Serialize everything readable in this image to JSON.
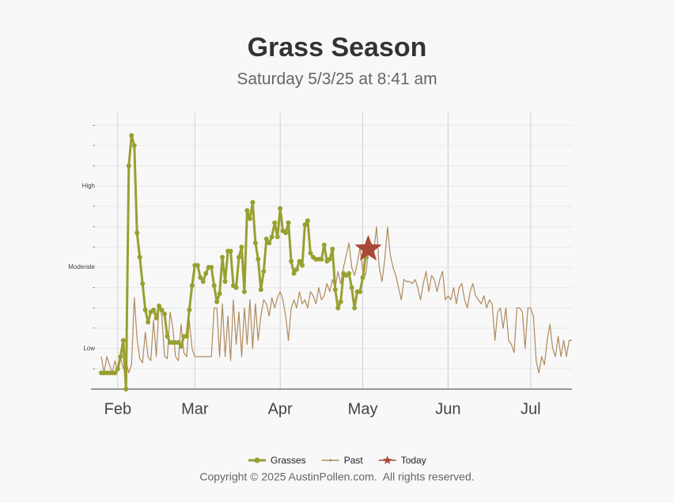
{
  "chart_data": {
    "type": "line",
    "title": "Grass Season",
    "subtitle": "Saturday 5/3/25 at 8:41 am",
    "categories": [
      null,
      null,
      null,
      null,
      null,
      null,
      "Feb",
      null,
      null,
      null,
      null,
      null,
      null,
      null,
      null,
      null,
      null,
      null,
      null,
      null,
      null,
      null,
      null,
      null,
      null,
      null,
      null,
      null,
      null,
      null,
      null,
      null,
      null,
      null,
      "Mar",
      null,
      null,
      null,
      null,
      null,
      null,
      null,
      null,
      null,
      null,
      null,
      null,
      null,
      null,
      null,
      null,
      null,
      null,
      null,
      null,
      null,
      null,
      null,
      null,
      null,
      null,
      null,
      null,
      null,
      null,
      "Apr",
      null,
      null,
      null,
      null,
      null,
      null,
      null,
      null,
      null,
      null,
      null,
      null,
      null,
      null,
      null,
      null,
      null,
      null,
      null,
      null,
      null,
      null,
      null,
      null,
      null,
      null,
      null,
      null,
      null,
      "May",
      null,
      null,
      null,
      null,
      null,
      null,
      null,
      null,
      null,
      null,
      null,
      null,
      null,
      null,
      null,
      null,
      null,
      null,
      null,
      null,
      null,
      null,
      null,
      null,
      null,
      null,
      null,
      null,
      null,
      null,
      "Jun",
      null,
      null,
      null,
      null,
      null,
      null,
      null,
      null,
      null,
      null,
      null,
      null,
      null,
      null,
      null,
      null,
      null,
      null,
      null,
      null,
      null,
      null,
      null,
      null,
      null,
      null,
      null,
      null,
      null,
      "Jul",
      null,
      null,
      null,
      null,
      null,
      null,
      null,
      null,
      null,
      null,
      null,
      null,
      null,
      null,
      null
    ],
    "series": [
      {
        "name": "Grasses",
        "color": "#98a030",
        "marker": "circle",
        "width": 3,
        "values": [
          0.8,
          0.8,
          0.8,
          0.8,
          0.8,
          0.8,
          1.0,
          1.6,
          2.4,
          0.0,
          11.0,
          12.5,
          12.0,
          7.7,
          6.5,
          5.2,
          3.9,
          3.3,
          3.8,
          3.9,
          3.5,
          4.1,
          3.9,
          3.7,
          2.6,
          2.3,
          2.3,
          2.3,
          2.3,
          2.1,
          2.6,
          2.6,
          3.9,
          5.1,
          6.1,
          6.1,
          5.5,
          5.3,
          5.7,
          6.0,
          6.0,
          5.1,
          4.3,
          4.7,
          6.5,
          5.3,
          6.8,
          6.8,
          5.1,
          5.0,
          6.5,
          7.0,
          4.8,
          8.8,
          8.4,
          9.2,
          7.2,
          6.4,
          4.9,
          5.8,
          7.4,
          7.2,
          7.5,
          8.2,
          7.5,
          8.9,
          7.8,
          7.7,
          8.2,
          6.3,
          5.7,
          5.9,
          6.3,
          6.1,
          8.1,
          8.3,
          6.7,
          6.5,
          6.4,
          6.4,
          6.4,
          7.1,
          6.3,
          6.4,
          6.9,
          4.9,
          4.0,
          4.3,
          5.7,
          5.6,
          5.7,
          5.0,
          4.0,
          4.8,
          4.8,
          5.5,
          6.5,
          6.9,
          null,
          null,
          null,
          null,
          null,
          null,
          null,
          null,
          null,
          null,
          null,
          null,
          null,
          null,
          null,
          null,
          null,
          null,
          null,
          null,
          null,
          null,
          null,
          null,
          null,
          null,
          null,
          null,
          null,
          null,
          null,
          null,
          null,
          null,
          null,
          null,
          null,
          null,
          null,
          null,
          null,
          null,
          null,
          null,
          null,
          null,
          null,
          null,
          null,
          null,
          null,
          null,
          null,
          null,
          null,
          null,
          null,
          null,
          null,
          null,
          null,
          null,
          null,
          null,
          null,
          null,
          null,
          null,
          null,
          null,
          null,
          null,
          null,
          null
        ]
      },
      {
        "name": "Past",
        "color": "#b08a5c",
        "marker": "none",
        "width": 1.2,
        "values": [
          1.6,
          0.8,
          1.6,
          1.2,
          0.8,
          1.4,
          0.9,
          1.6,
          1.0,
          1.4,
          0.8,
          1.2,
          4.5,
          2.5,
          1.5,
          1.3,
          2.8,
          1.6,
          1.4,
          3.4,
          1.6,
          4.2,
          3.6,
          1.6,
          1.5,
          3.8,
          3.0,
          1.6,
          1.4,
          3.2,
          1.8,
          1.6,
          3.4,
          2.0,
          1.6,
          1.6,
          1.6,
          1.6,
          1.6,
          1.6,
          1.6,
          4.0,
          4.0,
          1.6,
          4.2,
          1.6,
          3.6,
          1.4,
          4.4,
          2.2,
          3.8,
          1.6,
          4.0,
          2.2,
          4.4,
          2.0,
          4.2,
          2.4,
          3.6,
          4.4,
          4.2,
          3.6,
          4.5,
          4.0,
          4.5,
          4.8,
          4.4,
          3.6,
          2.4,
          4.0,
          4.4,
          4.0,
          4.8,
          4.2,
          4.4,
          4.0,
          4.8,
          4.6,
          4.2,
          5.0,
          4.4,
          4.6,
          5.2,
          4.8,
          5.4,
          5.0,
          5.8,
          5.2,
          6.0,
          6.6,
          7.2,
          6.0,
          5.6,
          6.2,
          7.0,
          5.8,
          5.6,
          6.6,
          7.2,
          6.8,
          8.0,
          6.0,
          5.3,
          6.4,
          8.0,
          6.6,
          6.0,
          5.6,
          5.0,
          4.4,
          5.4,
          5.3,
          5.3,
          5.2,
          5.4,
          5.0,
          4.4,
          5.2,
          5.8,
          4.8,
          5.6,
          5.4,
          4.8,
          5.4,
          5.8,
          4.4,
          4.6,
          4.4,
          5.0,
          4.2,
          5.0,
          5.2,
          4.4,
          4.0,
          4.8,
          5.2,
          4.6,
          4.4,
          4.2,
          4.6,
          4.0,
          4.4,
          4.2,
          2.4,
          3.8,
          4.0,
          3.0,
          4.0,
          2.4,
          2.2,
          1.8,
          4.0,
          4.0,
          3.8,
          2.0,
          4.0,
          4.0,
          3.6,
          1.4,
          0.8,
          1.6,
          1.2,
          2.4,
          3.2,
          2.0,
          1.6,
          2.6,
          1.6,
          2.4,
          1.6,
          2.4,
          2.4
        ]
      },
      {
        "name": "Today",
        "color": "#a84838",
        "marker": "star",
        "width": 1.2,
        "values": [
          null,
          null,
          null,
          null,
          null,
          null,
          null,
          null,
          null,
          null,
          null,
          null,
          null,
          null,
          null,
          null,
          null,
          null,
          null,
          null,
          null,
          null,
          null,
          null,
          null,
          null,
          null,
          null,
          null,
          null,
          null,
          null,
          null,
          null,
          null,
          null,
          null,
          null,
          null,
          null,
          null,
          null,
          null,
          null,
          null,
          null,
          null,
          null,
          null,
          null,
          null,
          null,
          null,
          null,
          null,
          null,
          null,
          null,
          null,
          null,
          null,
          null,
          null,
          null,
          null,
          null,
          null,
          null,
          null,
          null,
          null,
          null,
          null,
          null,
          null,
          null,
          null,
          null,
          null,
          null,
          null,
          null,
          null,
          null,
          null,
          null,
          null,
          null,
          null,
          null,
          null,
          null,
          null,
          null,
          null,
          null,
          null,
          6.9,
          null,
          null,
          null,
          null,
          null,
          null,
          null,
          null,
          null,
          null,
          null,
          null,
          null,
          null,
          null,
          null,
          null,
          null,
          null,
          null,
          null,
          null,
          null,
          null,
          null,
          null,
          null,
          null,
          null,
          null,
          null,
          null,
          null,
          null,
          null,
          null,
          null,
          null,
          null,
          null,
          null,
          null,
          null,
          null,
          null,
          null,
          null,
          null,
          null,
          null,
          null,
          null,
          null,
          null,
          null,
          null,
          null,
          null,
          null,
          null,
          null,
          null,
          null,
          null,
          null,
          null,
          null,
          null,
          null,
          null,
          null,
          null,
          null,
          null
        ]
      }
    ],
    "ylim": [
      0,
      13.6
    ],
    "yticks": [
      {
        "value": 1,
        "label": "-"
      },
      {
        "value": 2,
        "label": "Low"
      },
      {
        "value": 3,
        "label": "-"
      },
      {
        "value": 4,
        "label": "-"
      },
      {
        "value": 5,
        "label": "-"
      },
      {
        "value": 6,
        "label": "Moderate"
      },
      {
        "value": 7,
        "label": "-"
      },
      {
        "value": 8,
        "label": "-"
      },
      {
        "value": 9,
        "label": "-"
      },
      {
        "value": 10,
        "label": "High"
      },
      {
        "value": 11,
        "label": "-"
      },
      {
        "value": 12,
        "label": "-"
      },
      {
        "value": 13,
        "label": "-"
      }
    ],
    "grid": true,
    "legend": "bottom",
    "footer": "Copyright © 2025 AustinPollen.com.  All rights reserved."
  }
}
